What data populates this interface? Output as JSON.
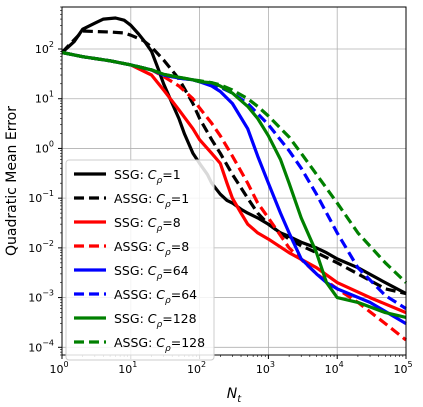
{
  "chart_data": {
    "type": "line",
    "xlabel": "N_t",
    "ylabel": "Quadratic Mean Error",
    "x_scale": "log",
    "y_scale": "log",
    "xlim": [
      1,
      100000
    ],
    "ylim": [
      7e-05,
      700
    ],
    "x_ticks": [
      {
        "value": 1,
        "base": "10",
        "exp": "0"
      },
      {
        "value": 10,
        "base": "10",
        "exp": "1"
      },
      {
        "value": 100,
        "base": "10",
        "exp": "2"
      },
      {
        "value": 1000,
        "base": "10",
        "exp": "3"
      },
      {
        "value": 10000,
        "base": "10",
        "exp": "4"
      },
      {
        "value": 100000,
        "base": "10",
        "exp": "5"
      }
    ],
    "y_ticks": [
      {
        "value": 0.0001,
        "base": "10",
        "exp": "−4"
      },
      {
        "value": 0.001,
        "base": "10",
        "exp": "−3"
      },
      {
        "value": 0.01,
        "base": "10",
        "exp": "−2"
      },
      {
        "value": 0.1,
        "base": "10",
        "exp": "−1"
      },
      {
        "value": 1,
        "base": "10",
        "exp": "0"
      },
      {
        "value": 10,
        "base": "10",
        "exp": "1"
      },
      {
        "value": 100,
        "base": "10",
        "exp": "2"
      }
    ],
    "grid": true,
    "legend_position": "left",
    "series": [
      {
        "name_prefix": "SSG",
        "cp": "1",
        "color": "#000000",
        "dash": "solid",
        "x": [
          1,
          1.5,
          2,
          3,
          4,
          6,
          8,
          10,
          13,
          16,
          20,
          25,
          30,
          40,
          50,
          60,
          80,
          100,
          130,
          150,
          200,
          250,
          300,
          400,
          500,
          700,
          1000,
          1500,
          2000,
          3000,
          5000,
          7000,
          10000,
          20000,
          50000,
          100000
        ],
        "y": [
          85,
          140,
          250,
          330,
          400,
          420,
          380,
          300,
          200,
          140,
          90,
          40,
          20,
          8,
          4,
          2,
          0.8,
          0.5,
          0.3,
          0.2,
          0.12,
          0.09,
          0.08,
          0.06,
          0.05,
          0.04,
          0.03,
          0.02,
          0.017,
          0.013,
          0.01,
          0.008,
          0.006,
          0.004,
          0.002,
          0.0012
        ]
      },
      {
        "name_prefix": "ASSG",
        "cp": "1",
        "color": "#000000",
        "dash": "dashed",
        "x": [
          1,
          2,
          3,
          5,
          8,
          10,
          15,
          20,
          30,
          50,
          80,
          100,
          150,
          200,
          300,
          500,
          700,
          1000,
          1500,
          2000,
          3000,
          5000,
          10000,
          20000,
          50000,
          100000
        ],
        "y": [
          85,
          230,
          225,
          220,
          210,
          190,
          150,
          110,
          60,
          25,
          8,
          4,
          1.5,
          0.8,
          0.3,
          0.1,
          0.05,
          0.03,
          0.02,
          0.015,
          0.011,
          0.008,
          0.005,
          0.003,
          0.0015,
          0.0012
        ]
      },
      {
        "name_prefix": "SSG",
        "cp": "8",
        "color": "#ff0000",
        "dash": "solid",
        "x": [
          1,
          2,
          5,
          10,
          20,
          30,
          50,
          80,
          100,
          150,
          200,
          250,
          300,
          400,
          500,
          700,
          1000,
          2000,
          5000,
          10000,
          30000,
          100000
        ],
        "y": [
          85,
          70,
          58,
          48,
          30,
          15,
          6,
          2.5,
          1.5,
          0.8,
          0.5,
          0.2,
          0.1,
          0.05,
          0.03,
          0.02,
          0.015,
          0.008,
          0.004,
          0.002,
          0.001,
          0.0005
        ]
      },
      {
        "name_prefix": "ASSG",
        "cp": "8",
        "color": "#ff0000",
        "dash": "dashed",
        "x": [
          1,
          2,
          5,
          10,
          20,
          30,
          50,
          80,
          100,
          150,
          200,
          300,
          500,
          700,
          1000,
          2000,
          5000,
          10000,
          20000,
          50000,
          100000
        ],
        "y": [
          85,
          70,
          58,
          48,
          38,
          28,
          18,
          10,
          6.5,
          3.2,
          1.8,
          0.7,
          0.2,
          0.08,
          0.04,
          0.01,
          0.003,
          0.0015,
          0.0008,
          0.0003,
          0.00014
        ]
      },
      {
        "name_prefix": "SSG",
        "cp": "64",
        "color": "#0000ff",
        "dash": "solid",
        "x": [
          1,
          2,
          5,
          10,
          20,
          30,
          50,
          80,
          100,
          150,
          200,
          300,
          500,
          700,
          1000,
          1500,
          2000,
          3000,
          5000,
          7000,
          10000,
          30000,
          100000
        ],
        "y": [
          85,
          70,
          58,
          48,
          38,
          30,
          26,
          24,
          22,
          18,
          14,
          8,
          2.5,
          0.7,
          0.2,
          0.05,
          0.02,
          0.006,
          0.003,
          0.002,
          0.0015,
          0.0008,
          0.0003
        ]
      },
      {
        "name_prefix": "ASSG",
        "cp": "64",
        "color": "#0000ff",
        "dash": "dashed",
        "x": [
          1,
          2,
          5,
          10,
          20,
          30,
          50,
          80,
          100,
          150,
          200,
          300,
          500,
          700,
          1000,
          2000,
          3000,
          5000,
          10000,
          20000,
          50000,
          100000
        ],
        "y": [
          85,
          70,
          58,
          48,
          38,
          30,
          26,
          24,
          22,
          19,
          17,
          13,
          8,
          5,
          3,
          0.9,
          0.4,
          0.12,
          0.02,
          0.004,
          0.0011,
          0.0006
        ]
      },
      {
        "name_prefix": "SSG",
        "cp": "128",
        "color": "#008000",
        "dash": "solid",
        "x": [
          1,
          2,
          5,
          10,
          20,
          30,
          50,
          80,
          100,
          150,
          200,
          300,
          500,
          700,
          1000,
          1500,
          2000,
          3000,
          5000,
          7000,
          10000,
          20000,
          50000,
          100000
        ],
        "y": [
          85,
          70,
          58,
          48,
          38,
          31,
          27,
          24,
          22,
          21,
          18,
          13,
          7,
          4,
          1.8,
          0.6,
          0.2,
          0.04,
          0.008,
          0.002,
          0.001,
          0.0008,
          0.0005,
          0.0004
        ]
      },
      {
        "name_prefix": "ASSG",
        "cp": "128",
        "color": "#008000",
        "dash": "dashed",
        "x": [
          1,
          2,
          5,
          10,
          20,
          30,
          50,
          80,
          100,
          150,
          200,
          300,
          500,
          700,
          1000,
          2000,
          3000,
          5000,
          10000,
          20000,
          50000,
          100000
        ],
        "y": [
          85,
          70,
          58,
          48,
          38,
          31,
          27,
          24,
          23,
          21,
          19,
          15,
          10,
          7,
          4.5,
          1.7,
          0.8,
          0.3,
          0.08,
          0.02,
          0.005,
          0.002
        ]
      }
    ]
  }
}
